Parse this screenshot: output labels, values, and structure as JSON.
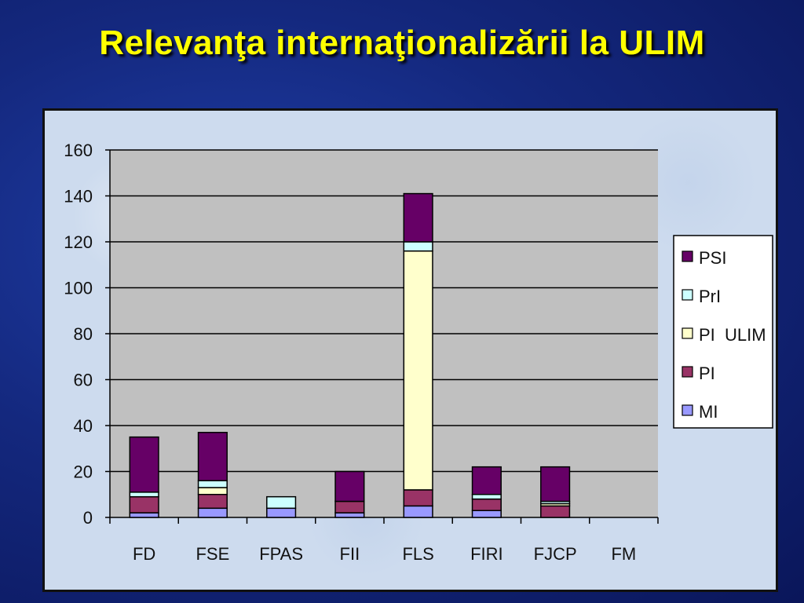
{
  "slide": {
    "title": "Relevanţa internaţionalizării la ULIM"
  },
  "chart_data": {
    "type": "bar",
    "stacked": true,
    "categories": [
      "FD",
      "FSE",
      "FPAS",
      "FII",
      "FLS",
      "FIRI",
      "FJCP",
      "FM"
    ],
    "series": [
      {
        "name": "MI",
        "color": "#9999ff",
        "values": [
          2,
          4,
          4,
          2,
          5,
          3,
          0,
          0
        ]
      },
      {
        "name": "PI",
        "color": "#993366",
        "values": [
          7,
          6,
          0,
          5,
          7,
          5,
          5,
          0
        ]
      },
      {
        "name": "PI  ULIM",
        "color": "#ffffcc",
        "values": [
          0,
          3,
          0,
          0,
          104,
          0,
          1,
          0
        ]
      },
      {
        "name": "PrI",
        "color": "#ccffff",
        "values": [
          2,
          3,
          5,
          0,
          4,
          2,
          1,
          0
        ]
      },
      {
        "name": "PSI",
        "color": "#660066",
        "values": [
          24,
          21,
          0,
          13,
          21,
          12,
          15,
          0
        ]
      }
    ],
    "legend_order": [
      "PSI",
      "PrI",
      "PI  ULIM",
      "PI",
      "MI"
    ],
    "ylim": [
      0,
      160
    ],
    "yticks": [
      0,
      20,
      40,
      60,
      80,
      100,
      120,
      140,
      160
    ],
    "grid": true,
    "legend_position": "right",
    "plot_background": "#c0c0c0"
  }
}
